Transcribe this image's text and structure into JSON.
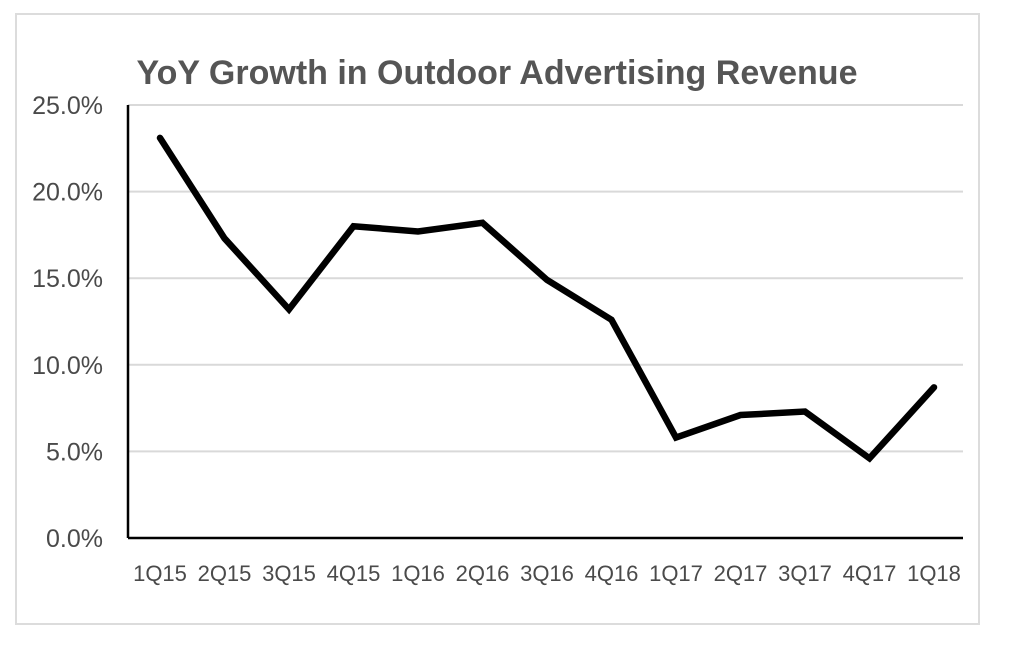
{
  "chart_data": {
    "type": "line",
    "title": "YoY Growth in Outdoor Advertising Revenue",
    "xlabel": "",
    "ylabel": "",
    "categories": [
      "1Q15",
      "2Q15",
      "3Q15",
      "4Q15",
      "1Q16",
      "2Q16",
      "3Q16",
      "4Q16",
      "1Q17",
      "2Q17",
      "3Q17",
      "4Q17",
      "1Q18"
    ],
    "series": [
      {
        "values": [
          23.1,
          17.3,
          13.2,
          18.0,
          17.7,
          18.2,
          14.9,
          12.6,
          5.8,
          7.1,
          7.3,
          4.6,
          8.7
        ]
      }
    ],
    "ylim": [
      0,
      25
    ],
    "yticks": [
      "0.0%",
      "5.0%",
      "10.0%",
      "15.0%",
      "20.0%",
      "25.0%"
    ],
    "grid": true,
    "line_color": "#000000",
    "grid_color": "#d9d9d9"
  }
}
